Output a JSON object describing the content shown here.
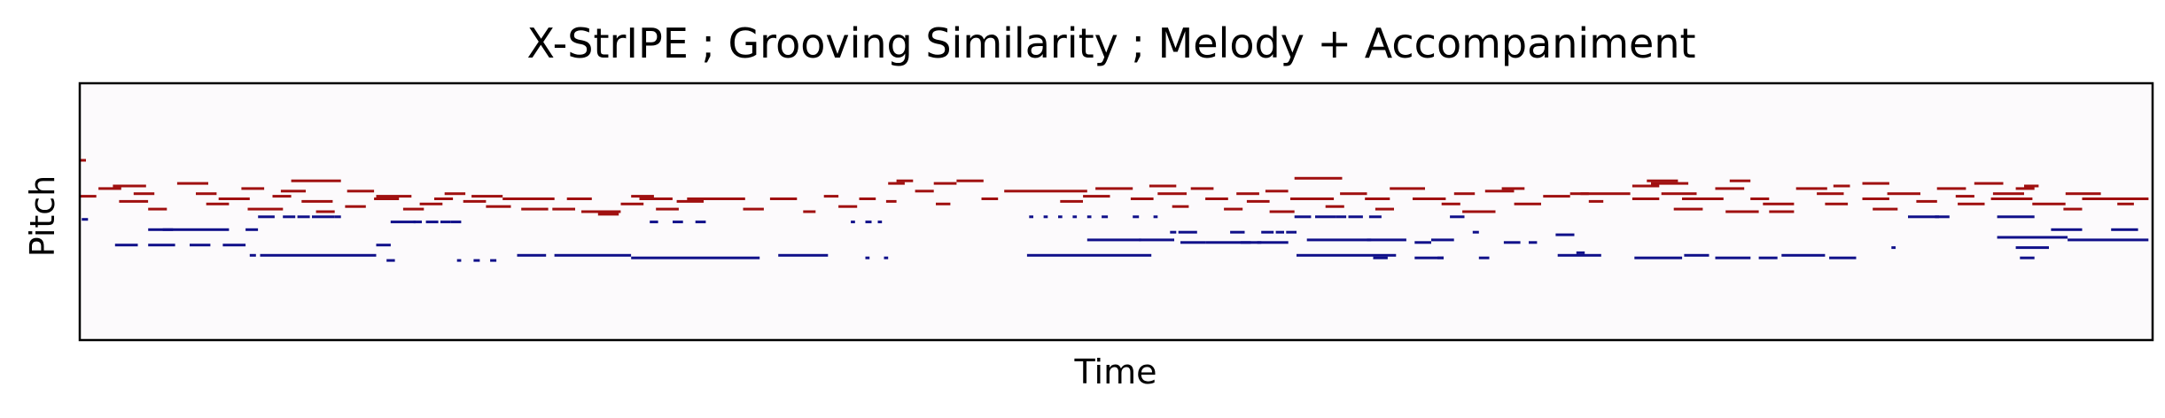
{
  "chart_data": {
    "type": "piano-roll",
    "title": "X-StrIPE ; Grooving Similarity ; Melody + Accompaniment",
    "xlabel": "Time",
    "ylabel": "Pitch",
    "xticks": [],
    "yticks": [],
    "xlim": [
      0,
      100
    ],
    "ylim": [
      0,
      100
    ],
    "background": "#fcfafc",
    "series": [
      {
        "name": "Melody",
        "color": "#a01010",
        "notes": [
          [
            0.0,
            0.3,
            70
          ],
          [
            0.0,
            0.8,
            56
          ],
          [
            0.9,
            2.0,
            59
          ],
          [
            1.6,
            3.2,
            60
          ],
          [
            1.9,
            3.3,
            54
          ],
          [
            2.6,
            3.6,
            57
          ],
          [
            3.3,
            4.2,
            51
          ],
          [
            4.7,
            6.2,
            61
          ],
          [
            5.6,
            6.6,
            57
          ],
          [
            6.1,
            7.2,
            53
          ],
          [
            6.7,
            8.2,
            55
          ],
          [
            7.8,
            8.9,
            59
          ],
          [
            8.1,
            9.8,
            51
          ],
          [
            9.3,
            10.2,
            56
          ],
          [
            9.7,
            10.9,
            58
          ],
          [
            10.2,
            12.6,
            62
          ],
          [
            10.7,
            12.2,
            54
          ],
          [
            11.4,
            12.3,
            50
          ],
          [
            12.8,
            13.8,
            52
          ],
          [
            12.9,
            14.2,
            58
          ],
          [
            14.2,
            15.4,
            55
          ],
          [
            14.3,
            16.0,
            56
          ],
          [
            15.6,
            16.6,
            51
          ],
          [
            16.4,
            17.5,
            53
          ],
          [
            17.1,
            18.0,
            55
          ],
          [
            17.6,
            18.6,
            57
          ],
          [
            18.5,
            19.6,
            54
          ],
          [
            18.9,
            20.4,
            56
          ],
          [
            19.6,
            20.8,
            52
          ],
          [
            20.4,
            22.9,
            55
          ],
          [
            21.3,
            22.6,
            51
          ],
          [
            22.8,
            23.9,
            51
          ],
          [
            23.5,
            24.7,
            55
          ],
          [
            24.2,
            26.1,
            50
          ],
          [
            25.0,
            26.0,
            49
          ],
          [
            26.1,
            27.2,
            53
          ],
          [
            26.6,
            27.7,
            56
          ],
          [
            27.0,
            28.6,
            55
          ],
          [
            27.8,
            28.9,
            51
          ],
          [
            28.8,
            30.1,
            54
          ],
          [
            29.3,
            30.7,
            55
          ],
          [
            30.6,
            32.1,
            55
          ],
          [
            32.0,
            33.0,
            51
          ],
          [
            33.3,
            34.6,
            55
          ],
          [
            34.9,
            35.5,
            50
          ],
          [
            35.9,
            36.6,
            56
          ],
          [
            36.6,
            37.5,
            52
          ],
          [
            37.6,
            38.4,
            55
          ],
          [
            38.9,
            39.4,
            54
          ],
          [
            39.0,
            39.8,
            61
          ],
          [
            39.4,
            40.2,
            62
          ],
          [
            40.3,
            41.2,
            58
          ],
          [
            41.2,
            42.3,
            61
          ],
          [
            41.3,
            42.0,
            53
          ],
          [
            42.3,
            43.6,
            62
          ],
          [
            43.5,
            44.3,
            55
          ],
          [
            44.6,
            48.6,
            58
          ],
          [
            47.3,
            48.4,
            54
          ],
          [
            48.4,
            49.7,
            56
          ],
          [
            49.0,
            50.8,
            59
          ],
          [
            50.7,
            51.8,
            55
          ],
          [
            51.6,
            52.9,
            60
          ],
          [
            52.0,
            53.4,
            57
          ],
          [
            52.7,
            53.5,
            52
          ],
          [
            53.6,
            54.7,
            59
          ],
          [
            54.3,
            55.4,
            55
          ],
          [
            55.2,
            56.1,
            51
          ],
          [
            55.8,
            56.9,
            57
          ],
          [
            56.3,
            57.4,
            54
          ],
          [
            57.2,
            58.3,
            58
          ],
          [
            57.4,
            58.6,
            50
          ],
          [
            58.4,
            60.5,
            55
          ],
          [
            58.6,
            60.9,
            63
          ],
          [
            60.1,
            61.0,
            52
          ],
          [
            60.8,
            62.1,
            57
          ],
          [
            62.0,
            63.2,
            55
          ],
          [
            62.5,
            63.4,
            51
          ],
          [
            63.2,
            64.9,
            59
          ],
          [
            64.3,
            65.9,
            55
          ],
          [
            65.7,
            66.6,
            53
          ],
          [
            66.3,
            67.3,
            57
          ],
          [
            66.7,
            68.3,
            50
          ],
          [
            67.8,
            69.2,
            58
          ],
          [
            68.6,
            69.7,
            59
          ],
          [
            69.2,
            70.5,
            53
          ],
          [
            70.6,
            71.9,
            56
          ],
          [
            71.9,
            72.8,
            57
          ],
          [
            72.8,
            73.5,
            54
          ],
          [
            72.4,
            73.6,
            57
          ],
          [
            73.6,
            74.8,
            57
          ],
          [
            74.9,
            76.2,
            60
          ],
          [
            74.9,
            76.2,
            55
          ],
          [
            75.6,
            77.1,
            62
          ],
          [
            75.8,
            77.6,
            61
          ],
          [
            76.3,
            78.0,
            57
          ],
          [
            76.9,
            78.3,
            51
          ],
          [
            77.3,
            79.1,
            55
          ],
          [
            78.3,
            79.3,
            55
          ],
          [
            78.9,
            80.3,
            59
          ],
          [
            79.4,
            81.0,
            50
          ],
          [
            79.6,
            80.6,
            62
          ],
          [
            80.6,
            81.5,
            55
          ],
          [
            81.2,
            82.7,
            53
          ],
          [
            81.5,
            82.7,
            50
          ],
          [
            82.8,
            84.3,
            59
          ],
          [
            83.8,
            85.1,
            57
          ],
          [
            84.2,
            85.3,
            53
          ],
          [
            84.6,
            85.4,
            60
          ],
          [
            86.0,
            87.3,
            61
          ],
          [
            86.0,
            87.3,
            55
          ],
          [
            86.5,
            87.7,
            51
          ],
          [
            87.2,
            88.8,
            57
          ],
          [
            88.6,
            89.6,
            54
          ],
          [
            89.6,
            91.0,
            59
          ],
          [
            90.5,
            91.4,
            56
          ],
          [
            90.6,
            91.9,
            53
          ],
          [
            91.4,
            92.8,
            61
          ],
          [
            92.2,
            94.2,
            55
          ],
          [
            92.3,
            93.8,
            57
          ],
          [
            93.4,
            94.3,
            59
          ],
          [
            93.8,
            94.5,
            60
          ],
          [
            94.2,
            95.8,
            53
          ],
          [
            95.8,
            97.5,
            57
          ],
          [
            95.7,
            96.6,
            51
          ],
          [
            96.6,
            98.2,
            55
          ],
          [
            97.6,
            99.8,
            55
          ],
          [
            98.3,
            99.1,
            53
          ]
        ]
      },
      {
        "name": "Accompaniment",
        "color": "#10108a",
        "notes": [
          [
            0.1,
            0.4,
            47
          ],
          [
            1.7,
            2.8,
            37
          ],
          [
            3.3,
            4.6,
            37
          ],
          [
            3.3,
            4.5,
            43
          ],
          [
            4.0,
            5.6,
            43
          ],
          [
            5.3,
            6.3,
            37
          ],
          [
            5.6,
            7.2,
            43
          ],
          [
            6.9,
            8.0,
            37
          ],
          [
            8.0,
            8.6,
            43
          ],
          [
            8.2,
            8.5,
            33
          ],
          [
            8.7,
            14.3,
            33
          ],
          [
            8.6,
            9.4,
            48
          ],
          [
            9.8,
            10.4,
            48
          ],
          [
            10.5,
            11.1,
            48
          ],
          [
            11.2,
            11.8,
            48
          ],
          [
            11.8,
            12.3,
            48
          ],
          [
            12.3,
            12.6,
            48
          ],
          [
            14.3,
            15.0,
            37
          ],
          [
            14.8,
            15.2,
            31
          ],
          [
            15.0,
            16.2,
            46
          ],
          [
            16.1,
            16.5,
            46
          ],
          [
            16.7,
            17.3,
            46
          ],
          [
            17.4,
            17.9,
            46
          ],
          [
            17.9,
            18.4,
            46
          ],
          [
            18.2,
            18.4,
            31
          ],
          [
            19.0,
            19.3,
            31
          ],
          [
            19.8,
            20.1,
            31
          ],
          [
            21.1,
            22.5,
            33
          ],
          [
            22.9,
            26.6,
            33
          ],
          [
            26.6,
            32.8,
            32
          ],
          [
            27.5,
            27.9,
            46
          ],
          [
            28.6,
            29.1,
            46
          ],
          [
            29.7,
            30.2,
            46
          ],
          [
            33.7,
            36.1,
            33
          ],
          [
            37.2,
            37.4,
            46
          ],
          [
            37.9,
            38.2,
            46
          ],
          [
            37.9,
            38.1,
            32
          ],
          [
            38.5,
            38.7,
            46
          ],
          [
            38.8,
            39.0,
            32
          ],
          [
            45.7,
            51.7,
            33
          ],
          [
            45.8,
            46.0,
            48
          ],
          [
            46.5,
            46.7,
            48
          ],
          [
            47.2,
            47.4,
            48
          ],
          [
            47.9,
            48.1,
            48
          ],
          [
            48.6,
            48.8,
            48
          ],
          [
            49.3,
            49.6,
            48
          ],
          [
            48.6,
            51.2,
            39
          ],
          [
            50.8,
            51.1,
            48
          ],
          [
            51.1,
            52.8,
            39
          ],
          [
            51.8,
            52.0,
            48
          ],
          [
            52.6,
            52.9,
            42
          ],
          [
            53.0,
            53.9,
            42
          ],
          [
            53.1,
            54.3,
            38
          ],
          [
            54.3,
            57.0,
            38
          ],
          [
            55.5,
            56.2,
            42
          ],
          [
            56.0,
            56.5,
            38
          ],
          [
            56.8,
            58.3,
            38
          ],
          [
            57.0,
            57.6,
            42
          ],
          [
            57.7,
            58.1,
            42
          ],
          [
            58.2,
            58.7,
            42
          ],
          [
            58.6,
            59.4,
            48
          ],
          [
            58.7,
            63.5,
            33
          ],
          [
            59.6,
            60.6,
            48
          ],
          [
            60.6,
            61.1,
            48
          ],
          [
            61.2,
            61.9,
            48
          ],
          [
            62.2,
            62.8,
            48
          ],
          [
            59.2,
            62.3,
            39
          ],
          [
            62.1,
            64.0,
            39
          ],
          [
            62.4,
            63.1,
            32
          ],
          [
            64.4,
            65.8,
            32
          ],
          [
            64.4,
            65.2,
            38
          ],
          [
            65.2,
            66.3,
            39
          ],
          [
            65.5,
            65.8,
            32
          ],
          [
            66.1,
            66.8,
            48
          ],
          [
            67.2,
            67.5,
            42
          ],
          [
            67.5,
            68.0,
            32
          ],
          [
            68.7,
            69.5,
            38
          ],
          [
            69.9,
            70.3,
            38
          ],
          [
            71.3,
            73.4,
            33
          ],
          [
            71.2,
            72.1,
            41
          ],
          [
            72.2,
            72.6,
            34
          ],
          [
            75.0,
            77.3,
            32
          ],
          [
            77.4,
            78.6,
            33
          ],
          [
            78.9,
            80.6,
            32
          ],
          [
            81.0,
            81.9,
            32
          ],
          [
            82.1,
            84.2,
            33
          ],
          [
            84.4,
            85.7,
            32
          ],
          [
            87.4,
            87.6,
            36
          ],
          [
            88.2,
            89.7,
            48
          ],
          [
            89.5,
            90.2,
            48
          ],
          [
            92.5,
            95.9,
            40
          ],
          [
            92.5,
            94.3,
            48
          ],
          [
            93.4,
            95.0,
            36
          ],
          [
            93.6,
            94.3,
            32
          ],
          [
            95.1,
            96.6,
            43
          ],
          [
            95.9,
            99.8,
            39
          ],
          [
            98.0,
            99.3,
            43
          ]
        ]
      }
    ]
  }
}
